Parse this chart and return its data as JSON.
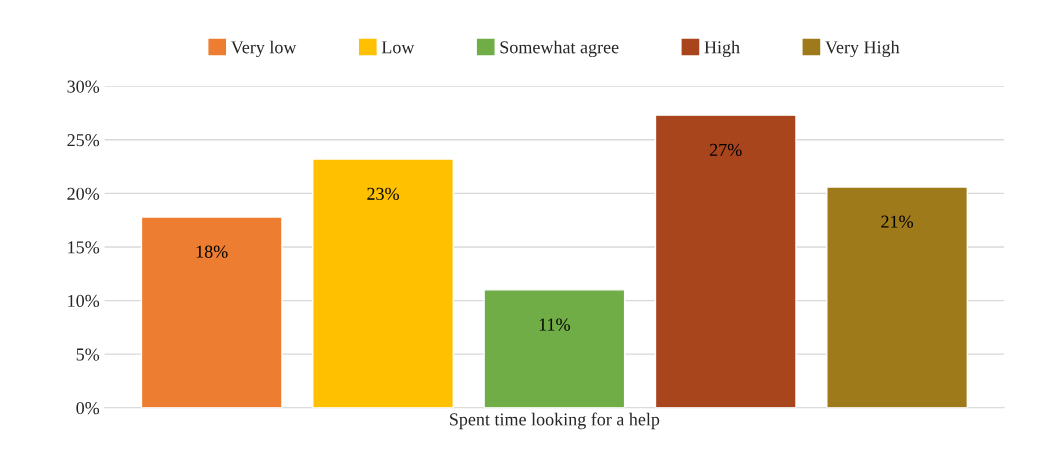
{
  "chart_data": {
    "type": "bar",
    "categories": [
      "Spent time looking for a help"
    ],
    "series": [
      {
        "name": "Very low",
        "color": "#ed7d31",
        "values": [
          17.8
        ],
        "value_labels": [
          "18%"
        ]
      },
      {
        "name": "Low",
        "color": "#ffc000",
        "values": [
          23.2
        ],
        "value_labels": [
          "23%"
        ]
      },
      {
        "name": "Somewhat agree",
        "color": "#70ad47",
        "values": [
          11.0
        ],
        "value_labels": [
          "11%"
        ]
      },
      {
        "name": "High",
        "color": "#a9451c",
        "values": [
          27.3
        ],
        "value_labels": [
          "27%"
        ]
      },
      {
        "name": "Very High",
        "color": "#9e7a1a",
        "values": [
          20.6
        ],
        "value_labels": [
          "21%"
        ]
      }
    ],
    "ylim": [
      0,
      30
    ],
    "yticks": [
      {
        "value": 0,
        "label": "0%"
      },
      {
        "value": 5,
        "label": "5%"
      },
      {
        "value": 10,
        "label": "10%"
      },
      {
        "value": 15,
        "label": "15%"
      },
      {
        "value": 20,
        "label": "20%"
      },
      {
        "value": 25,
        "label": "25%"
      },
      {
        "value": 30,
        "label": "30%"
      }
    ],
    "grid": "y",
    "legend": "top"
  }
}
